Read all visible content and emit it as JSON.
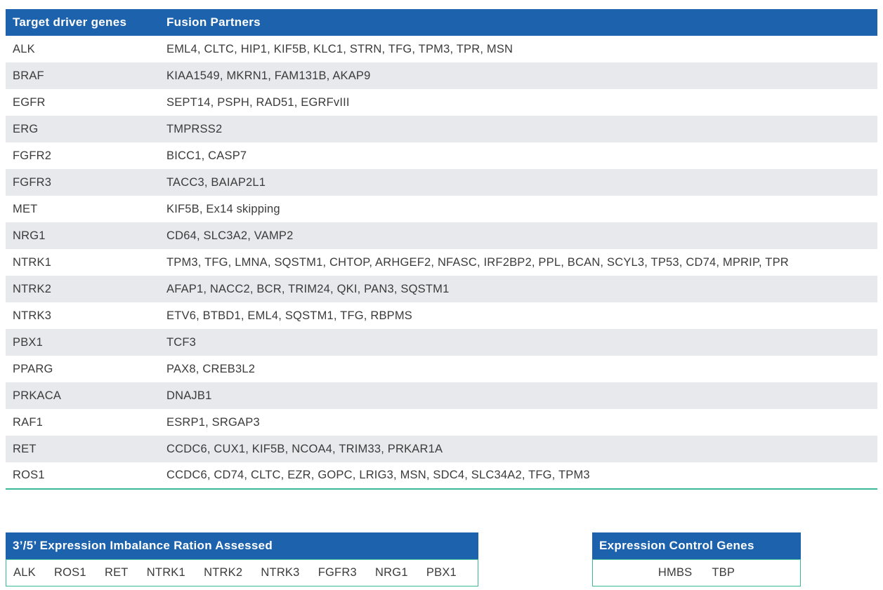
{
  "colors": {
    "header_blue": "#1D62AC",
    "teal_accent": "#3AB795",
    "row_stripe_gray": "#E7E9EC",
    "body_text": "#3B3B3C",
    "header_text": "#FFFFFF"
  },
  "fusion_table": {
    "columns": [
      "Target driver genes",
      "Fusion Partners"
    ],
    "rows": [
      {
        "gene": "ALK",
        "partners": "EML4, CLTC, HIP1, KIF5B, KLC1, STRN, TFG, TPM3, TPR, MSN"
      },
      {
        "gene": "BRAF",
        "partners": "KIAA1549, MKRN1, FAM131B, AKAP9"
      },
      {
        "gene": "EGFR",
        "partners": "SEPT14, PSPH, RAD51, EGRFvIII"
      },
      {
        "gene": "ERG",
        "partners": "TMPRSS2"
      },
      {
        "gene": "FGFR2",
        "partners": "BICC1, CASP7"
      },
      {
        "gene": "FGFR3",
        "partners": "TACC3, BAIAP2L1"
      },
      {
        "gene": "MET",
        "partners": "KIF5B, Ex14 skipping"
      },
      {
        "gene": "NRG1",
        "partners": "CD64, SLC3A2, VAMP2"
      },
      {
        "gene": "NTRK1",
        "partners": "TPM3, TFG, LMNA, SQSTM1, CHTOP, ARHGEF2, NFASC, IRF2BP2, PPL, BCAN, SCYL3, TP53, CD74, MPRIP, TPR"
      },
      {
        "gene": "NTRK2",
        "partners": "AFAP1, NACC2, BCR, TRIM24, QKI, PAN3, SQSTM1"
      },
      {
        "gene": "NTRK3",
        "partners": "ETV6, BTBD1, EML4, SQSTM1, TFG, RBPMS"
      },
      {
        "gene": "PBX1",
        "partners": "TCF3"
      },
      {
        "gene": "PPARG",
        "partners": "PAX8, CREB3L2"
      },
      {
        "gene": "PRKACA",
        "partners": "DNAJB1"
      },
      {
        "gene": "RAF1",
        "partners": "ESRP1, SRGAP3"
      },
      {
        "gene": "RET",
        "partners": "CCDC6, CUX1, KIF5B, NCOA4, TRIM33, PRKAR1A"
      },
      {
        "gene": "ROS1",
        "partners": "CCDC6, CD74, CLTC, EZR, GOPC, LRIG3, MSN, SDC4, SLC34A2, TFG, TPM3"
      }
    ]
  },
  "imbalance_table": {
    "title": "3’/5’ Expression Imbalance Ration Assessed",
    "genes": [
      "ALK",
      "ROS1",
      "RET",
      "NTRK1",
      "NTRK2",
      "NTRK3",
      "FGFR3",
      "NRG1",
      "PBX1"
    ]
  },
  "control_table": {
    "title": "Expression Control Genes",
    "genes": [
      "HMBS",
      "TBP"
    ]
  }
}
